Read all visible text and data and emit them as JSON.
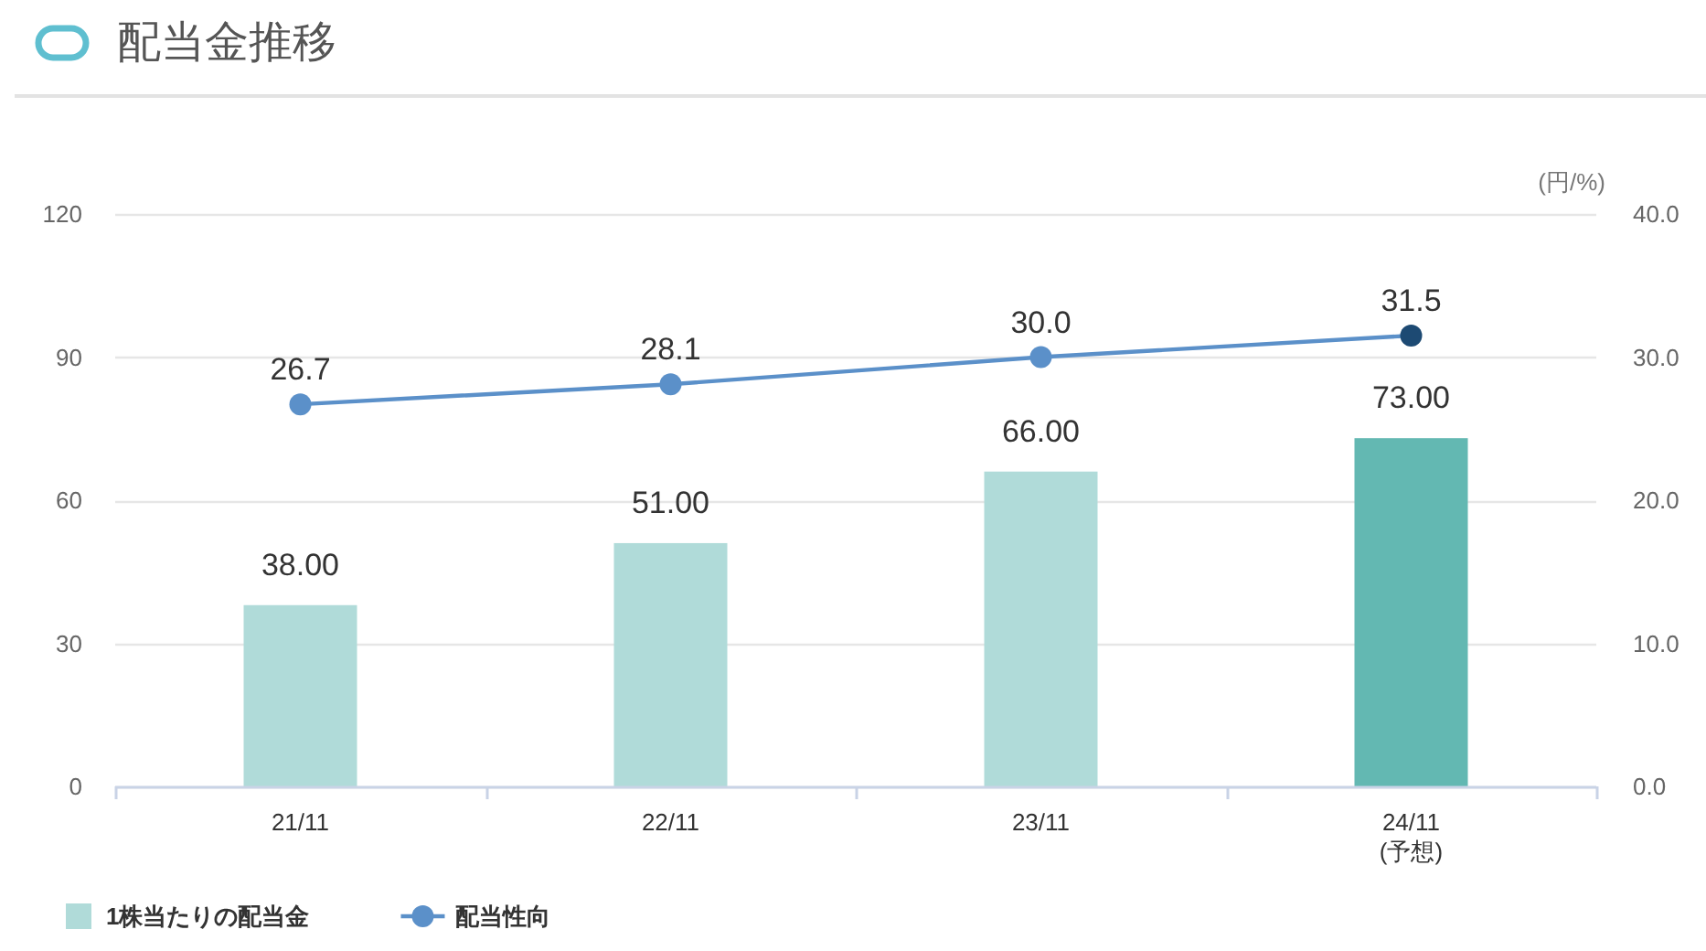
{
  "chart_data": {
    "type": "bar",
    "title": "配当金推移",
    "categories": [
      "21/11",
      "22/11",
      "23/11",
      "24/11\n(予想)"
    ],
    "series": [
      {
        "name": "1株当たりの配当金",
        "color": "#b0dbd9",
        "colors": [
          "#b0dbd9",
          "#b0dbd9",
          "#b0dbd9",
          "#63b8b2"
        ],
        "values": [
          38,
          51,
          66,
          73
        ],
        "value_labels": [
          "38.00",
          "51.00",
          "66.00",
          "73.00"
        ]
      },
      {
        "name": "配当性向",
        "type": "line",
        "axis": "y2",
        "color": "#5b90c9",
        "colors": [
          "#5b90c9",
          "#5b90c9",
          "#5b90c9",
          "#1d4a73"
        ],
        "marker": "circle",
        "values": [
          26.7,
          28.1,
          30.0,
          31.5
        ],
        "value_labels": [
          "26.7",
          "28.1",
          "30.0",
          "31.5"
        ]
      }
    ],
    "ylim": [
      0,
      120
    ],
    "yticks": [
      0,
      30,
      60,
      90,
      120
    ],
    "y2lim": [
      0,
      40
    ],
    "y2ticks": [
      {
        "value": 0,
        "label": "0.0"
      },
      {
        "value": 10,
        "label": "10.0"
      },
      {
        "value": 20,
        "label": "20.0"
      },
      {
        "value": 30,
        "label": "30.0"
      },
      {
        "value": 40,
        "label": "40.0"
      }
    ],
    "y2label": "(円/%)",
    "grid": "y",
    "legend": "bottom left"
  }
}
